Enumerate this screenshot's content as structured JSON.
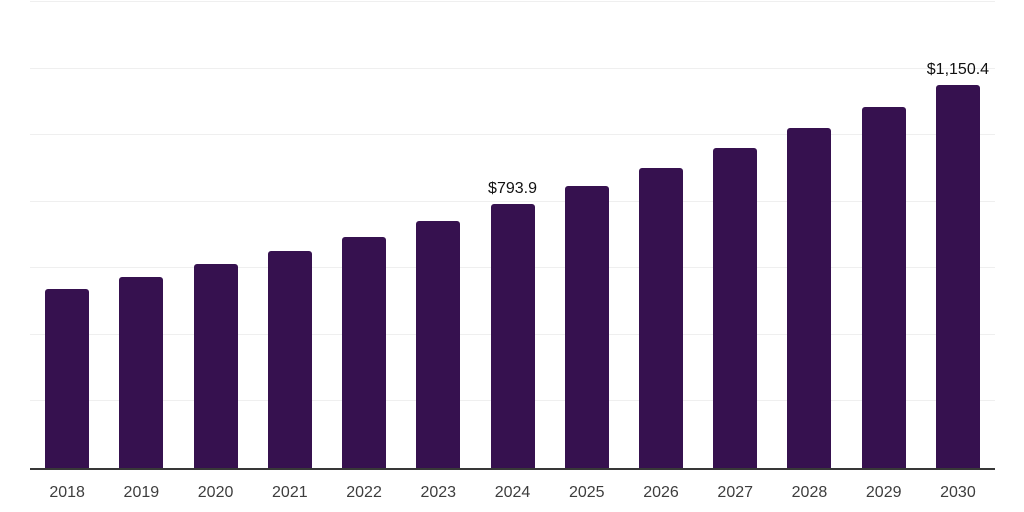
{
  "chart_data": {
    "type": "bar",
    "title": "",
    "xlabel": "",
    "ylabel": "",
    "categories": [
      "2018",
      "2019",
      "2020",
      "2021",
      "2022",
      "2023",
      "2024",
      "2025",
      "2026",
      "2027",
      "2028",
      "2029",
      "2030"
    ],
    "values": [
      538,
      574.5,
      613.5,
      650.5,
      695,
      743,
      793.9,
      847,
      900.5,
      960.5,
      1020.5,
      1085.5,
      1150.4
    ],
    "value_labels_visible": {
      "2024": "$793.9",
      "2030": "$1,150.4"
    },
    "ylim": [
      0,
      1400
    ],
    "gridline_interval": 200,
    "grid": "horizontal-only",
    "y_tick_labels": "none",
    "legend": "none",
    "colors": {
      "bar": "#36114F",
      "gridline": "#efefef",
      "axis_line": "#383838",
      "tick_label": "#3d3d3d",
      "value_label": "#111111",
      "background": "#ffffff"
    }
  }
}
